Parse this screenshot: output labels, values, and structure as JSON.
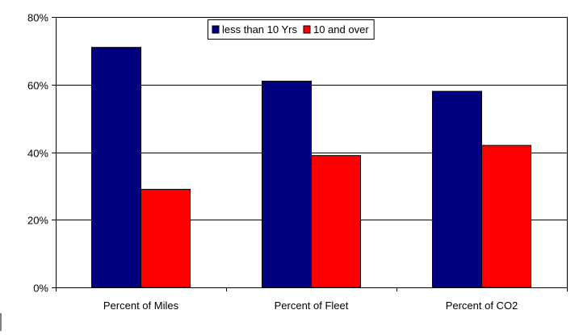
{
  "chart_data": {
    "type": "bar",
    "categories": [
      "Percent of Miles",
      "Percent of Fleet",
      "Percent of CO2"
    ],
    "series": [
      {
        "name": "less than 10 Yrs",
        "values": [
          71,
          61,
          58
        ],
        "color": "#000080"
      },
      {
        "name": "10 and over",
        "values": [
          29,
          39,
          42
        ],
        "color": "#ff0000"
      }
    ],
    "ylim": [
      0,
      80
    ],
    "yticks": [
      {
        "value": 0,
        "label": "0%"
      },
      {
        "value": 20,
        "label": "20%"
      },
      {
        "value": 40,
        "label": "40%"
      },
      {
        "value": 60,
        "label": "60%"
      },
      {
        "value": 80,
        "label": "80%"
      }
    ],
    "grid": true,
    "legend_position": "top-center",
    "title": "",
    "xlabel": "",
    "ylabel": ""
  }
}
